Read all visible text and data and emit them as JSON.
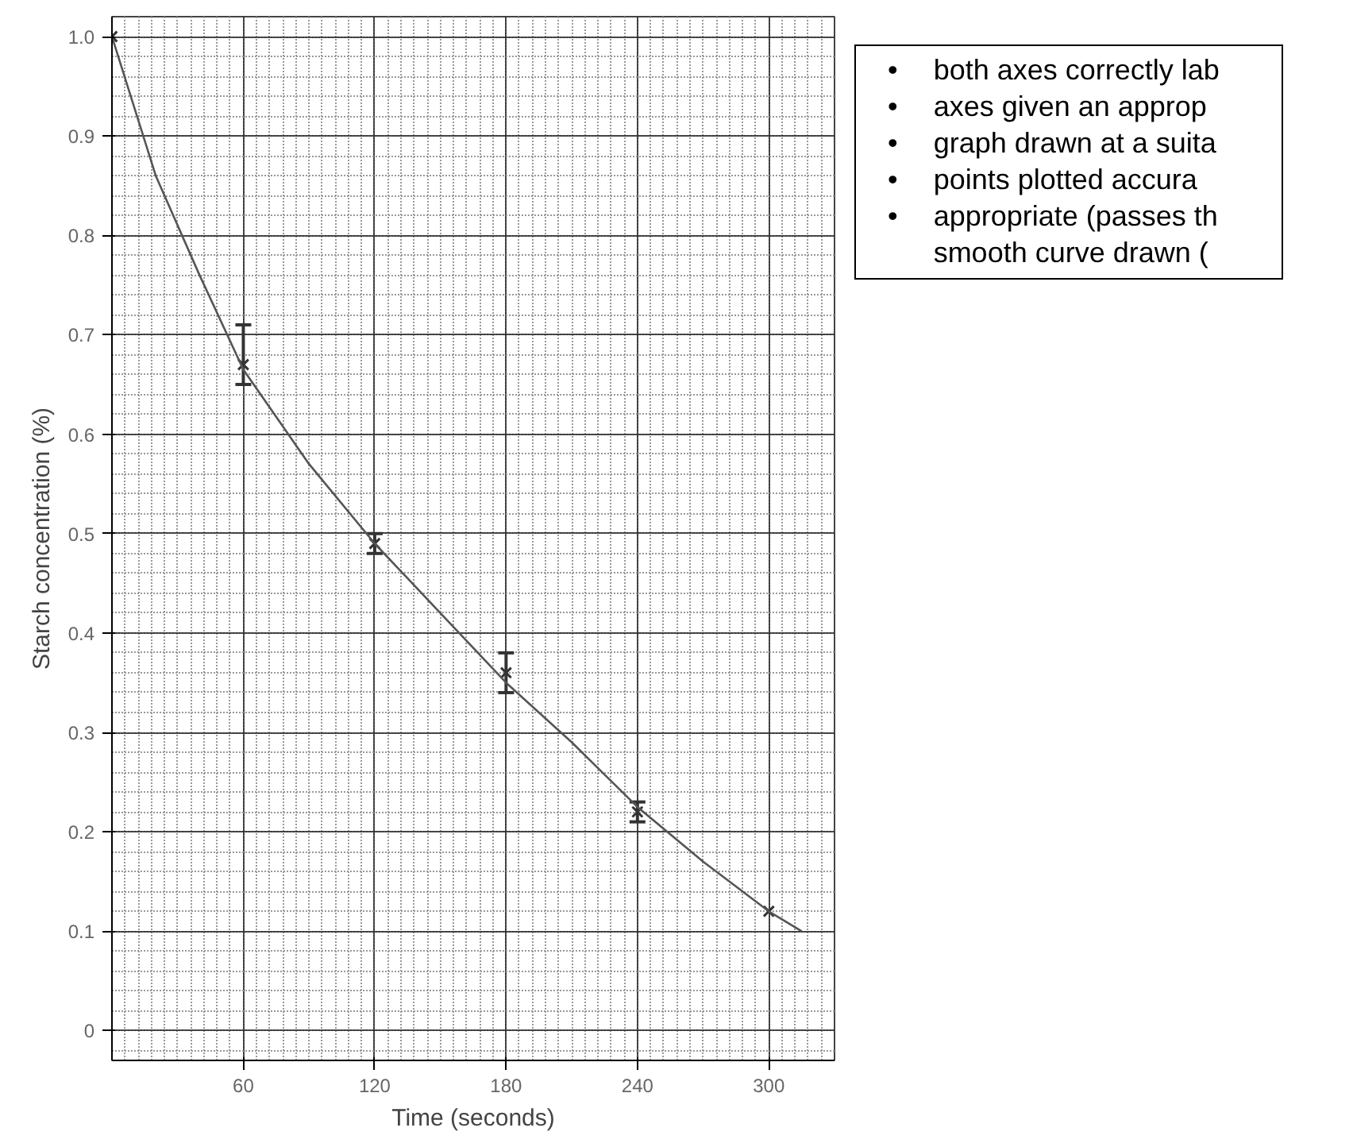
{
  "chart_data": {
    "type": "scatter",
    "xlabel": "Time (seconds)",
    "ylabel": "Starch concentration (%)",
    "x": [
      0,
      60,
      120,
      180,
      240,
      300
    ],
    "series": [
      {
        "color": "#333333",
        "marker": "cross",
        "values": [
          1.0,
          0.67,
          0.49,
          0.36,
          0.22,
          0.12
        ],
        "errors": [
          null,
          [
            0.65,
            0.71
          ],
          [
            0.48,
            0.5
          ],
          [
            0.34,
            0.38
          ],
          [
            0.21,
            0.23
          ],
          null
        ]
      },
      {
        "type": "line",
        "color": "#555555",
        "line_style": "solid",
        "x": [
          0,
          20,
          40,
          60,
          90,
          120,
          150,
          180,
          210,
          240,
          270,
          300,
          315
        ],
        "values": [
          1.0,
          0.86,
          0.76,
          0.665,
          0.57,
          0.49,
          0.42,
          0.35,
          0.29,
          0.225,
          0.17,
          0.12,
          0.1
        ]
      }
    ],
    "xlim": [
      0,
      330
    ],
    "ylim": [
      -0.03,
      1.02
    ],
    "xticks": [
      60,
      120,
      180,
      240,
      300
    ],
    "yticks": [
      {
        "value": 0,
        "label": "0"
      },
      0.1,
      0.2,
      0.3,
      0.4,
      0.5,
      0.6,
      0.7,
      0.8,
      0.9,
      {
        "value": 1,
        "label": "1.0"
      }
    ],
    "grid": true,
    "annotations": [
      "•\tboth axes correctly lab",
      "•\taxes given an approp",
      "•\tgraph drawn at a suita",
      "•\tpoints plotted accura",
      "•\tappropriate (passes th",
      "\tsmooth curve drawn ("
    ]
  }
}
